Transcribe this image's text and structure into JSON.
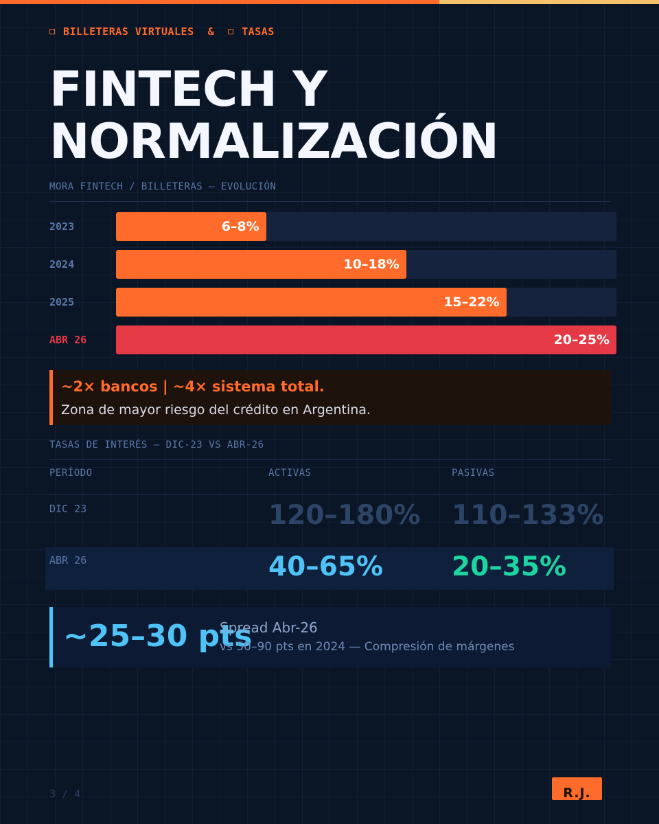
{
  "header": {
    "tag1": "BILLETERAS VIRTUALES",
    "amp": "&",
    "tag2": "TASAS",
    "title_line1": "FINTECH Y",
    "title_line2": "NORMALIZACIÓN",
    "colors": {
      "accent": "#ff6b2b",
      "accent_secondary": "#f5c36a",
      "background": "#0a1526"
    }
  },
  "mora": {
    "label": "MORA FINTECH / BILLETERAS — EVOLUCIÓN",
    "rows": [
      {
        "period": "2023",
        "value_label": "6–8%",
        "fill": 0.3,
        "color": "#ff6b2b",
        "label_color": "#5b78a8"
      },
      {
        "period": "2024",
        "value_label": "10–18%",
        "fill": 0.58,
        "color": "#ff6b2b",
        "label_color": "#5b78a8"
      },
      {
        "period": "2025",
        "value_label": "15–22%",
        "fill": 0.78,
        "color": "#ff6b2b",
        "label_color": "#5b78a8"
      },
      {
        "period": "ABR 26",
        "value_label": "20–25%",
        "fill": 1.0,
        "color": "#e63946",
        "label_color": "#e63946"
      }
    ]
  },
  "callout": {
    "headline": "~2× bancos | ~4× sistema total.",
    "text": "Zona de mayor riesgo del crédito en Argentina."
  },
  "tasas": {
    "label": "TASAS DE INTERÉS — DIC-23 VS ABR-26",
    "headers": {
      "period": "PERÍODO",
      "activas": "ACTIVAS",
      "pasivas": "PASIVAS"
    },
    "rows": [
      {
        "period": "DIC 23",
        "activas": "120–180%",
        "pasivas": "110–133%"
      },
      {
        "period": "ABR 26",
        "activas": "40–65%",
        "pasivas": "20–35%"
      }
    ],
    "colors": {
      "muted": "#2c4566",
      "activas": "#4fc3f7",
      "pasivas": "#1ed4a0"
    }
  },
  "spread": {
    "value": "~25–30 pts",
    "title": "Spread Abr-26",
    "subtitle": "vs 50–90 pts en 2024 — Compresión de márgenes"
  },
  "footer": {
    "pager": "3 / 4",
    "logo": "R.J."
  }
}
